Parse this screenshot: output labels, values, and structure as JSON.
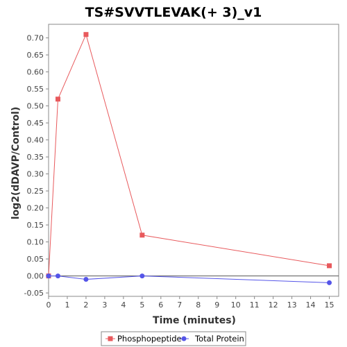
{
  "chart_data": {
    "type": "line",
    "title": "TS#SVVTLEVAK(+ 3)_v1",
    "xlabel": "Time (minutes)",
    "ylabel": "log2(dDAVP/Control)",
    "xlim": [
      0,
      15.5
    ],
    "ylim": [
      -0.06,
      0.74
    ],
    "xticks": [
      0,
      1,
      2,
      3,
      4,
      5,
      6,
      7,
      8,
      9,
      10,
      11,
      12,
      13,
      14,
      15
    ],
    "yticks": [
      -0.05,
      0.0,
      0.05,
      0.1,
      0.15,
      0.2,
      0.25,
      0.3,
      0.35,
      0.4,
      0.45,
      0.5,
      0.55,
      0.6,
      0.65,
      0.7
    ],
    "ytick_labels": [
      "-0.05",
      "0.00",
      "0.05",
      "0.10",
      "0.15",
      "0.20",
      "0.25",
      "0.30",
      "0.35",
      "0.40",
      "0.45",
      "0.50",
      "0.55",
      "0.60",
      "0.65",
      "0.70"
    ],
    "zero_line": true,
    "grid": false,
    "legend_position": "bottom",
    "series": [
      {
        "name": "Phosphopeptide",
        "color": "#e8595c",
        "marker": "square",
        "x": [
          0,
          0.5,
          2,
          5,
          15
        ],
        "y": [
          0.0,
          0.52,
          0.71,
          0.12,
          0.03
        ]
      },
      {
        "name": "Total Protein",
        "color": "#5555e8",
        "marker": "circle",
        "x": [
          0,
          0.5,
          2,
          5,
          15
        ],
        "y": [
          0.0,
          0.0,
          -0.01,
          0.0,
          -0.02
        ]
      }
    ]
  }
}
